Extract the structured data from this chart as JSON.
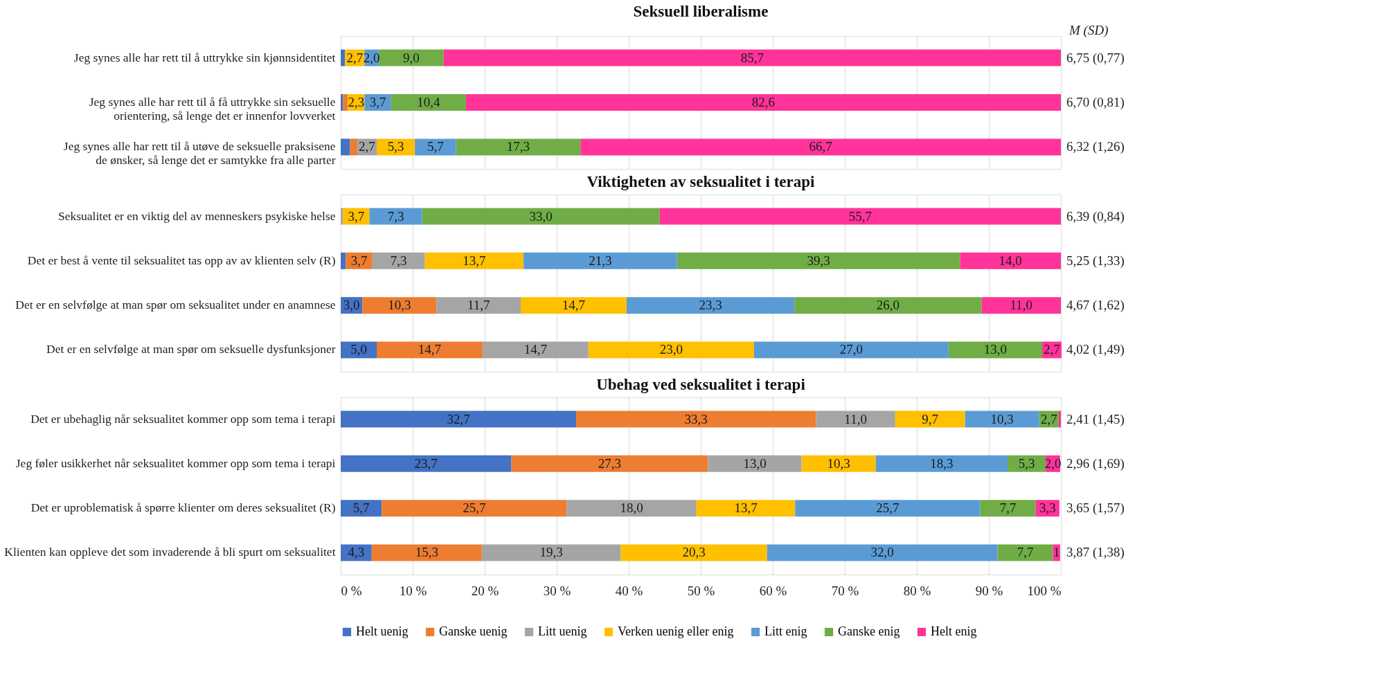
{
  "chart_data": [
    {
      "type": "bar",
      "orientation": "horizontal",
      "stacked": true,
      "title": "Seksuell liberalisme",
      "tick_labels": "y",
      "grid": "x",
      "legend": "bottom",
      "categories": [
        "Jeg synes alle har rett til å uttrykke sin kjønnsidentitet",
        "Jeg synes alle har rett til å få uttrykke sin seksuelle orientering, så lenge det er innenfor lovverket",
        "Jeg synes alle har rett til å utøve de seksuelle praksisene de ønsker, så lenge det er samtykke fra alle parter"
      ],
      "xlim": [
        0,
        100
      ],
      "xticks": [
        0,
        10,
        20,
        30,
        40,
        50,
        60,
        70,
        80,
        90,
        100
      ],
      "series": [
        {
          "name": "Helt uenig",
          "color": "#4472c4",
          "values": [
            0.6,
            0.3,
            1.3
          ],
          "value_labels": [
            null,
            null,
            null
          ]
        },
        {
          "name": "Ganske uenig",
          "color": "#ed7d31",
          "values": [
            null,
            0.7,
            1.0
          ],
          "value_labels": [
            null,
            null,
            null
          ]
        },
        {
          "name": "Litt uenig",
          "color": "#a5a5a5",
          "values": [
            null,
            null,
            2.7
          ],
          "value_labels": [
            null,
            null,
            "2,7"
          ]
        },
        {
          "name": "Verken uenig eller enig",
          "color": "#ffc000",
          "values": [
            2.7,
            2.3,
            5.3
          ],
          "value_labels": [
            "2,7",
            "2,3",
            "5,3"
          ]
        },
        {
          "name": "Litt enig",
          "color": "#5b9bd5",
          "values": [
            2.0,
            3.7,
            5.7
          ],
          "value_labels": [
            "2,0",
            "3,7",
            "5,7"
          ]
        },
        {
          "name": "Ganske enig",
          "color": "#70ad47",
          "values": [
            9.0,
            10.4,
            17.3
          ],
          "value_labels": [
            "9,0",
            "10,4",
            "17,3"
          ]
        },
        {
          "name": "Helt enig",
          "color": "#ff3399",
          "values": [
            85.7,
            82.6,
            66.7
          ],
          "value_labels": [
            "85,7",
            "82,6",
            "66,7"
          ]
        }
      ],
      "annotations": [
        "M (SD)",
        "6,75 (0,77)",
        "6,70 (0,81)",
        "6,32 (1,26)"
      ]
    },
    {
      "type": "bar",
      "orientation": "horizontal",
      "stacked": true,
      "title": "Viktigheten av seksualitet i terapi",
      "tick_labels": "y",
      "grid": "x",
      "categories": [
        "Seksualitet er en viktig del av menneskers psykiske helse",
        "Det er best å vente til seksualitet tas opp av av klienten selv (R)",
        "Det er en selvfølge at man spør om seksualitet under en anamnese",
        "Det er en selvfølge at man spør om seksuelle dysfunksjoner"
      ],
      "xlim": [
        0,
        100
      ],
      "xticks": [
        0,
        10,
        20,
        30,
        40,
        50,
        60,
        70,
        80,
        90,
        100
      ],
      "series": [
        {
          "name": "Helt uenig",
          "color": "#4472c4",
          "values": [
            null,
            0.7,
            3.0,
            5.0
          ],
          "value_labels": [
            null,
            null,
            "3,0",
            "5,0"
          ]
        },
        {
          "name": "Ganske uenig",
          "color": "#ed7d31",
          "values": [
            null,
            3.7,
            10.3,
            14.7
          ],
          "value_labels": [
            null,
            "3,7",
            "10,3",
            "14,7"
          ]
        },
        {
          "name": "Litt uenig",
          "color": "#a5a5a5",
          "values": [
            0.3,
            7.3,
            11.7,
            14.7
          ],
          "value_labels": [
            null,
            "7,3",
            "11,7",
            "14,7"
          ]
        },
        {
          "name": "Verken uenig eller enig",
          "color": "#ffc000",
          "values": [
            3.7,
            13.7,
            14.7,
            23.0
          ],
          "value_labels": [
            "3,7",
            "13,7",
            "14,7",
            "23,0"
          ]
        },
        {
          "name": "Litt enig",
          "color": "#5b9bd5",
          "values": [
            7.3,
            21.3,
            23.3,
            27.0
          ],
          "value_labels": [
            "7,3",
            "21,3",
            "23,3",
            "27,0"
          ]
        },
        {
          "name": "Ganske enig",
          "color": "#70ad47",
          "values": [
            33.0,
            39.3,
            26.0,
            13.0
          ],
          "value_labels": [
            "33,0",
            "39,3",
            "26,0",
            "13,0"
          ]
        },
        {
          "name": "Helt enig",
          "color": "#ff3399",
          "values": [
            55.7,
            14.0,
            11.0,
            2.7
          ],
          "value_labels": [
            "55,7",
            "14,0",
            "11,0",
            "2,7"
          ]
        }
      ],
      "annotations": [
        "6,39 (0,84)",
        "5,25 (1,33)",
        "4,67 (1,62)",
        "4,02 (1,49)"
      ]
    },
    {
      "type": "bar",
      "orientation": "horizontal",
      "stacked": true,
      "title": "Ubehag ved seksualitet i terapi",
      "grid": "x",
      "categories": [
        "Det er ubehaglig når seksualitet kommer opp som tema i terapi",
        "Jeg føler usikkerhet når seksualitet kommer opp som tema i terapi",
        "Det er uproblematisk å spørre klienter om deres seksualitet (R)",
        "Klienten kan oppleve det som invaderende å bli spurt om seksualitet"
      ],
      "xlim": [
        0,
        100
      ],
      "xticks": [
        {
          "value": 0,
          "label": "0 %"
        },
        {
          "value": 10,
          "label": "10 %"
        },
        {
          "value": 20,
          "label": "20 %"
        },
        {
          "value": 30,
          "label": "30 %"
        },
        {
          "value": 40,
          "label": "40 %"
        },
        {
          "value": 50,
          "label": "50 %"
        },
        {
          "value": 60,
          "label": "60 %"
        },
        {
          "value": 70,
          "label": "70 %"
        },
        {
          "value": 80,
          "label": "80 %"
        },
        {
          "value": 90,
          "label": "90 %"
        },
        {
          "value": 100,
          "label": "100 %"
        }
      ],
      "series": [
        {
          "name": "Helt uenig",
          "color": "#4472c4",
          "values": [
            32.7,
            23.7,
            5.7,
            4.3
          ],
          "value_labels": [
            "32,7",
            "23,7",
            "5,7",
            "4,3"
          ]
        },
        {
          "name": "Ganske uenig",
          "color": "#ed7d31",
          "values": [
            33.3,
            27.3,
            25.7,
            15.3
          ],
          "value_labels": [
            "33,3",
            "27,3",
            "25,7",
            "15,3"
          ]
        },
        {
          "name": "Litt uenig",
          "color": "#a5a5a5",
          "values": [
            11.0,
            13.0,
            18.0,
            19.3
          ],
          "value_labels": [
            "11,0",
            "13,0",
            "18,0",
            "19,3"
          ]
        },
        {
          "name": "Verken uenig eller enig",
          "color": "#ffc000",
          "values": [
            9.7,
            10.3,
            13.7,
            20.3
          ],
          "value_labels": [
            "9,7",
            "10,3",
            "13,7",
            "20,3"
          ]
        },
        {
          "name": "Litt enig",
          "color": "#5b9bd5",
          "values": [
            10.3,
            18.3,
            25.7,
            32.0
          ],
          "value_labels": [
            "10,3",
            "18,3",
            "25,7",
            "32,0"
          ]
        },
        {
          "name": "Ganske enig",
          "color": "#70ad47",
          "values": [
            2.7,
            5.3,
            7.7,
            7.7
          ],
          "value_labels": [
            "2,7",
            "5,3",
            "7,7",
            "7,7"
          ]
        },
        {
          "name": "Helt enig",
          "color": "#ff3399",
          "values": [
            0.3,
            2.0,
            3.3,
            1
          ],
          "value_labels": [
            null,
            "2,0",
            "3,3",
            "1"
          ]
        }
      ],
      "annotations": [
        "2,41 (1,45)",
        "2,96 (1,69)",
        "3,65 (1,57)",
        "3,87 (1,38)"
      ]
    }
  ]
}
